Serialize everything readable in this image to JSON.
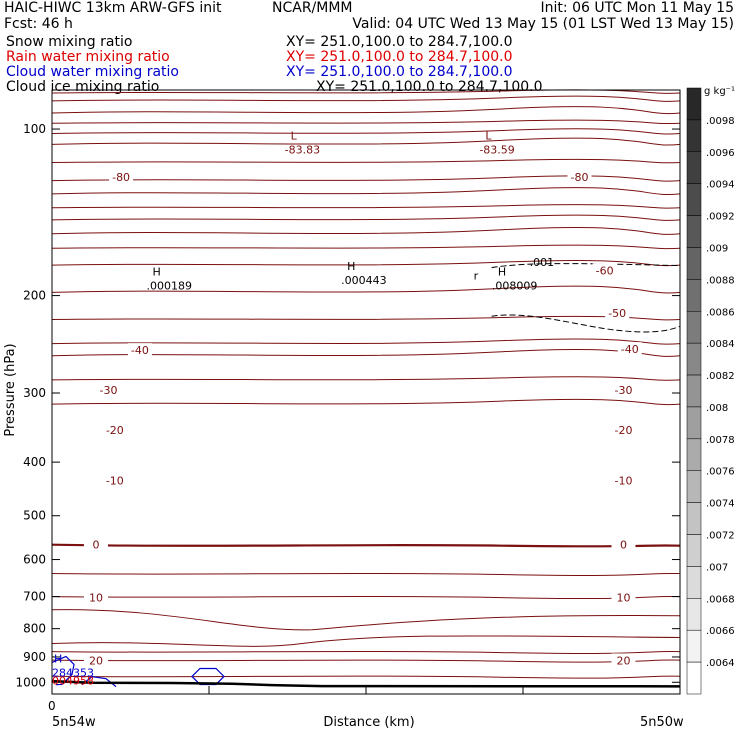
{
  "header": {
    "line1_left": "HAIC-HIWC 13km ARW-GFS init",
    "line1_mid": "NCAR/MMM",
    "line1_right": "Init: 06 UTC Mon 11 May 15",
    "line2_left": "Fcst:    46 h",
    "line2_right": "Valid: 04 UTC Wed 13 May 15 (01 LST Wed 13 May 15)"
  },
  "fields": [
    {
      "label": "Snow mixing ratio",
      "xy": "XY= 251.0,100.0 to 284.7,100.0",
      "color": "#000000"
    },
    {
      "label": "Rain water mixing ratio",
      "xy": "XY= 251.0,100.0 to 284.7,100.0",
      "color": "#dd0000"
    },
    {
      "label": "Cloud water mixing ratio",
      "xy": "XY= 251.0,100.0 to 284.7,100.0",
      "color": "#0000cc"
    },
    {
      "label": "Cloud ice mixing ratio",
      "xy": "XY= 251.0,100.0 to 284.7,100.0",
      "color": "#000000"
    }
  ],
  "chart_data": {
    "type": "cross-section",
    "xlabel": "Distance (km)",
    "ylabel": "Pressure (hPa)",
    "y_scale": "log",
    "ylim": [
      1050,
      85
    ],
    "yticks": [
      100,
      200,
      300,
      400,
      500,
      600,
      700,
      800,
      900,
      1000
    ],
    "x_start_label": "0",
    "x_left_label": "5n54w",
    "x_right_label": "5n50w",
    "contour_color": "#7a1010",
    "isotherm_labels": [
      {
        "text": "-80",
        "x": 0.11,
        "p": 122
      },
      {
        "text": "-80",
        "x": 0.84,
        "p": 122
      },
      {
        "text": "-60",
        "x": 0.88,
        "p": 180
      },
      {
        "text": "-50",
        "x": 0.9,
        "p": 215
      },
      {
        "text": "-40",
        "x": 0.14,
        "p": 251
      },
      {
        "text": "-40",
        "x": 0.92,
        "p": 250
      },
      {
        "text": "-30",
        "x": 0.09,
        "p": 296
      },
      {
        "text": "-30",
        "x": 0.91,
        "p": 296
      },
      {
        "text": "-20",
        "x": 0.1,
        "p": 350
      },
      {
        "text": "-20",
        "x": 0.91,
        "p": 350
      },
      {
        "text": "-10",
        "x": 0.1,
        "p": 432
      },
      {
        "text": "-10",
        "x": 0.91,
        "p": 432
      },
      {
        "text": "0",
        "x": 0.07,
        "p": 564
      },
      {
        "text": "0",
        "x": 0.91,
        "p": 564
      },
      {
        "text": "10",
        "x": 0.07,
        "p": 703
      },
      {
        "text": "10",
        "x": 0.91,
        "p": 703
      },
      {
        "text": "20",
        "x": 0.07,
        "p": 913
      },
      {
        "text": "20",
        "x": 0.91,
        "p": 913
      }
    ],
    "extrema": [
      {
        "marker": "L",
        "value": "-83.83",
        "x": 0.38,
        "p": 108
      },
      {
        "marker": "L",
        "value": "-83.59",
        "x": 0.69,
        "p": 108
      },
      {
        "marker": "H",
        "value": ".000189",
        "x": 0.16,
        "p": 190
      },
      {
        "marker": "H",
        "value": ".000443",
        "x": 0.47,
        "p": 186
      },
      {
        "marker": "H",
        "value": ".008009",
        "x": 0.71,
        "p": 190
      },
      {
        "marker": "H",
        "value": "284353",
        "x": 0.0,
        "p": 952
      },
      {
        "marker": "",
        "value": "004958",
        "x": 0.0,
        "p": 985
      }
    ],
    "snow_contour_label": {
      "text": ".001",
      "x": 0.78,
      "p": 174
    },
    "small_labels": [
      {
        "text": "r",
        "x": 0.675,
        "p": 190
      }
    ],
    "colorbar": {
      "unit": "g kg⁻¹",
      "ticks": [
        ".0098",
        ".0096",
        ".0094",
        ".0092",
        ".009",
        ".0088",
        ".0086",
        ".0084",
        ".0082",
        ".008",
        ".0078",
        ".0076",
        ".0074",
        ".0072",
        ".007",
        ".0068",
        ".0066",
        ".0064"
      ]
    }
  }
}
